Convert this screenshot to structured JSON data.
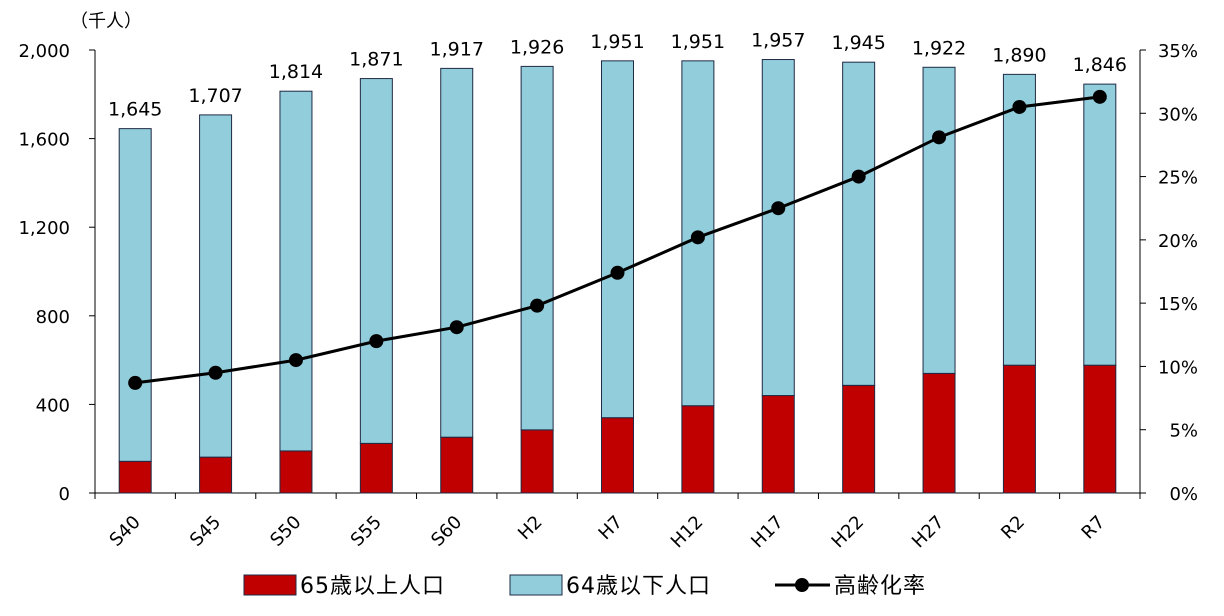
{
  "chart_data": {
    "type": "bar",
    "stacked": true,
    "categories": [
      "S40",
      "S45",
      "S50",
      "S55",
      "S60",
      "H2",
      "H7",
      "H12",
      "H17",
      "H22",
      "H27",
      "R2",
      "R7"
    ],
    "series": [
      {
        "name": "65歳以上人口",
        "axis": "left",
        "color": "#C00000",
        "values": [
          143,
          162,
          190,
          224,
          252,
          285,
          340,
          394,
          440,
          486,
          540,
          577,
          577
        ]
      },
      {
        "name": "64歳以下人口",
        "axis": "left",
        "color": "#92CDDC",
        "values": [
          1502,
          1545,
          1624,
          1647,
          1665,
          1641,
          1611,
          1557,
          1517,
          1459,
          1382,
          1313,
          1269
        ]
      },
      {
        "name": "高齢化率",
        "type": "line",
        "axis": "right",
        "color": "#000000",
        "values": [
          8.7,
          9.5,
          10.5,
          12.0,
          13.1,
          14.8,
          17.4,
          20.2,
          22.5,
          25.0,
          28.1,
          30.5,
          31.3
        ]
      }
    ],
    "totals": [
      "1,645",
      "1,707",
      "1,814",
      "1,871",
      "1,917",
      "1,926",
      "1,951",
      "1,951",
      "1,957",
      "1,945",
      "1,922",
      "1,890",
      "1,846"
    ],
    "total_values": [
      1645,
      1707,
      1814,
      1871,
      1917,
      1926,
      1951,
      1951,
      1957,
      1945,
      1922,
      1890,
      1846
    ],
    "y_left_unit": "（千人）",
    "ylim_left": [
      0,
      2000
    ],
    "y_left_ticks": [
      0,
      400,
      800,
      1200,
      1600,
      2000
    ],
    "y_left_tick_labels": [
      "0",
      "400",
      "800",
      "1,200",
      "1,600",
      "2,000"
    ],
    "ylim_right": [
      0,
      35
    ],
    "y_right_ticks": [
      0,
      5,
      10,
      15,
      20,
      25,
      30,
      35
    ],
    "y_right_tick_labels": [
      "0%",
      "5%",
      "10%",
      "15%",
      "20%",
      "25%",
      "30%",
      "35%"
    ],
    "grid": false,
    "legend_position": "bottom"
  }
}
